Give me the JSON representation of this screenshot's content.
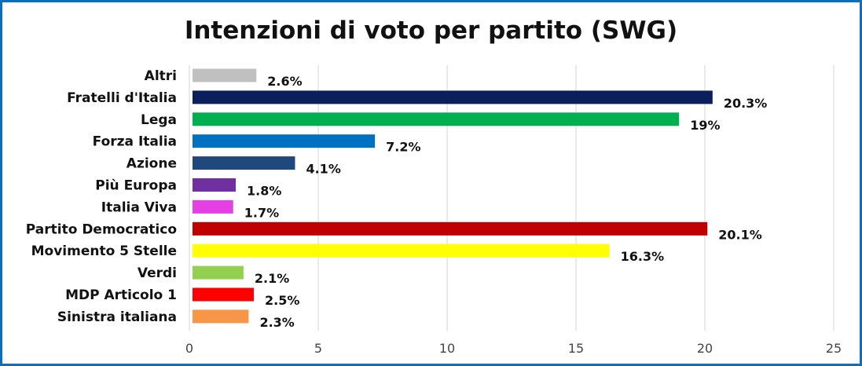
{
  "chart_data": {
    "type": "bar",
    "orientation": "horizontal",
    "title": "Intenzioni di voto per partito (SWG)",
    "categories": [
      "Altri",
      "Fratelli d'Italia",
      "Lega",
      "Forza Italia",
      "Azione",
      "Più Europa",
      "Italia Viva",
      "Partito Democratico",
      "Movimento 5 Stelle",
      "Verdi",
      "MDP Articolo 1",
      "Sinistra italiana"
    ],
    "values": [
      2.6,
      20.3,
      19,
      7.2,
      4.1,
      1.8,
      1.7,
      20.1,
      16.3,
      2.1,
      2.5,
      2.3
    ],
    "value_labels": [
      "2.6%",
      "20.3%",
      "19%",
      "7.2%",
      "4.1%",
      "1.8%",
      "1.7%",
      "20.1%",
      "16.3%",
      "2.1%",
      "2.5%",
      "2.3%"
    ],
    "colors": [
      "#c0c0c0",
      "#0a1f5c",
      "#00b050",
      "#0070c0",
      "#1f497d",
      "#7030a0",
      "#e63fe6",
      "#c00000",
      "#ffff00",
      "#92d050",
      "#ff0000",
      "#f79646"
    ],
    "xlim": [
      0,
      25
    ],
    "x_ticks": [
      0,
      5,
      10,
      15,
      20,
      25
    ],
    "grid": true,
    "legend": "none",
    "xlabel": "",
    "ylabel": ""
  },
  "frame_color": "#0b6fbf"
}
